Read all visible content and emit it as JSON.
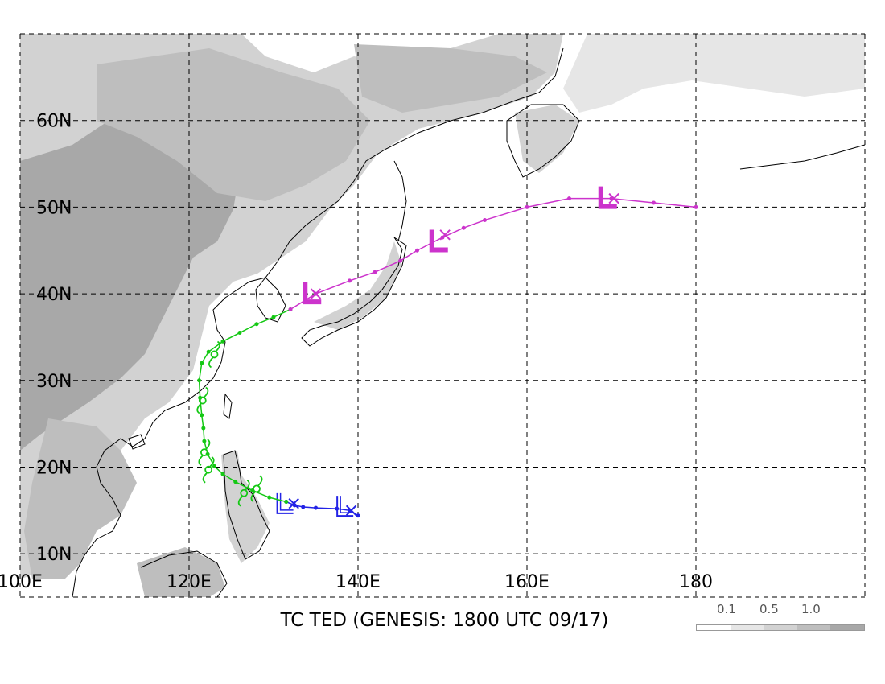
{
  "title": "TC TED (GENESIS: 1800 UTC 09/17)",
  "map": {
    "lon_range": [
      100,
      200
    ],
    "lat_range": [
      5,
      70
    ],
    "lon_labels": [
      "100E",
      "120E",
      "140E",
      "160E",
      "180"
    ],
    "lat_labels": [
      "10N",
      "20N",
      "30N",
      "40N",
      "50N",
      "60N"
    ],
    "grid": "dashed",
    "colors": {
      "land_outline": "#000000",
      "grid": "#000000"
    }
  },
  "legend": {
    "labels": [
      "0.1",
      "0.5",
      "1.0"
    ],
    "shades": [
      "#ffffff",
      "#e6e6e6",
      "#d2d2d2",
      "#bebebe",
      "#a8a8a8"
    ]
  },
  "tracks": [
    {
      "stage": "depression",
      "color": "#2323e6",
      "points": [
        [
          140.0,
          14.4
        ],
        [
          139.0,
          15.0
        ],
        [
          137.5,
          15.2
        ],
        [
          135.0,
          15.3
        ],
        [
          133.5,
          15.4
        ],
        [
          132.5,
          15.6
        ],
        [
          131.5,
          16.0
        ]
      ],
      "symbols": [
        {
          "type": "L",
          "lon": 138.3,
          "lat": 15.3
        },
        {
          "type": "L",
          "lon": 131.2,
          "lat": 15.6
        },
        {
          "type": "x",
          "lon": 139.2,
          "lat": 15.0
        },
        {
          "type": "x",
          "lon": 132.4,
          "lat": 15.8
        }
      ]
    },
    {
      "stage": "storm",
      "color": "#14c814",
      "points": [
        [
          131.5,
          16.0
        ],
        [
          129.5,
          16.5
        ],
        [
          127.5,
          17.3
        ],
        [
          125.5,
          18.3
        ],
        [
          124.0,
          19.2
        ],
        [
          123.0,
          20.1
        ],
        [
          122.2,
          21.5
        ],
        [
          121.8,
          23.0
        ],
        [
          121.7,
          24.5
        ],
        [
          121.5,
          26.0
        ],
        [
          121.3,
          28.0
        ],
        [
          121.2,
          30.0
        ],
        [
          121.5,
          32.0
        ],
        [
          122.3,
          33.3
        ],
        [
          124.0,
          34.5
        ],
        [
          126.0,
          35.5
        ],
        [
          128.0,
          36.5
        ],
        [
          130.0,
          37.3
        ],
        [
          132.0,
          38.2
        ]
      ],
      "symbols": [
        {
          "type": "storm",
          "lon": 123.0,
          "lat": 33.0
        },
        {
          "type": "storm",
          "lon": 121.6,
          "lat": 27.7
        },
        {
          "type": "storm",
          "lon": 121.8,
          "lat": 21.7
        },
        {
          "type": "storm",
          "lon": 122.3,
          "lat": 19.7
        },
        {
          "type": "storm",
          "lon": 126.5,
          "lat": 17.0
        },
        {
          "type": "storm",
          "lon": 128.0,
          "lat": 17.5
        }
      ]
    },
    {
      "stage": "extratropical",
      "color": "#cc33cc",
      "points": [
        [
          132.0,
          38.2
        ],
        [
          135.0,
          40.0
        ],
        [
          139.0,
          41.5
        ],
        [
          142.0,
          42.5
        ],
        [
          145.0,
          43.8
        ],
        [
          147.0,
          45.0
        ],
        [
          150.0,
          46.5
        ],
        [
          152.5,
          47.6
        ],
        [
          155.0,
          48.5
        ],
        [
          160.0,
          50.0
        ],
        [
          165.0,
          51.0
        ],
        [
          170.0,
          51.0
        ],
        [
          175.0,
          50.5
        ],
        [
          180.0,
          50.0
        ]
      ],
      "symbols": [
        {
          "type": "L",
          "lon": 134.5,
          "lat": 40.0
        },
        {
          "type": "L",
          "lon": 149.5,
          "lat": 46.0
        },
        {
          "type": "L",
          "lon": 169.5,
          "lat": 51.0
        },
        {
          "type": "x",
          "lon": 135.0,
          "lat": 40.0
        },
        {
          "type": "x",
          "lon": 150.3,
          "lat": 46.8
        },
        {
          "type": "x",
          "lon": 170.3,
          "lat": 51.0
        }
      ]
    }
  ]
}
